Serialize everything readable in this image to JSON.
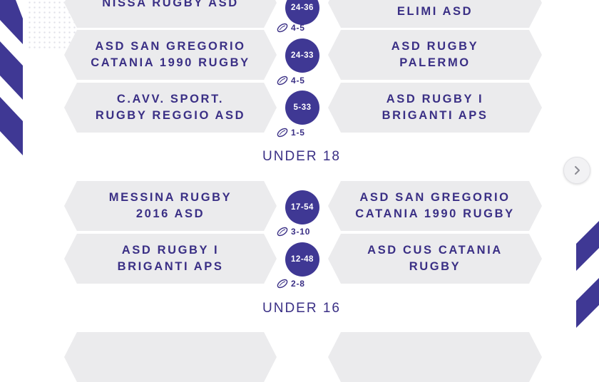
{
  "colors": {
    "accent": "#3f3894",
    "pill": "#ebebed",
    "text": "#3a2f85"
  },
  "matches_top": [
    {
      "home": [
        "NISSA RUGBY ASD"
      ],
      "away": [
        "ELIMI ASD"
      ],
      "score": "24-36",
      "tries": "4-5"
    },
    {
      "home": [
        "ASD SAN GREGORIO",
        "CATANIA 1990 RUGBY"
      ],
      "away": [
        "ASD RUGBY",
        "PALERMO"
      ],
      "score": "24-33",
      "tries": "4-5"
    },
    {
      "home": [
        "C.AVV. SPORT.",
        "RUGBY REGGIO ASD"
      ],
      "away": [
        "ASD RUGBY I",
        "BRIGANTI APS"
      ],
      "score": "5-33",
      "tries": "1-5"
    }
  ],
  "section_u18": "UNDER 18",
  "matches_u18": [
    {
      "home": [
        "MESSINA RUGBY",
        "2016 ASD"
      ],
      "away": [
        "ASD SAN GREGORIO",
        "CATANIA 1990 RUGBY"
      ],
      "score": "17-54",
      "tries": "3-10"
    },
    {
      "home": [
        "ASD RUGBY I",
        "BRIGANTI APS"
      ],
      "away": [
        "ASD CUS CATANIA",
        "RUGBY"
      ],
      "score": "12-48",
      "tries": "2-8"
    }
  ],
  "section_u16": "UNDER 16",
  "icons": {
    "ball": "rugby-ball-icon",
    "next": "chevron-right-icon"
  }
}
